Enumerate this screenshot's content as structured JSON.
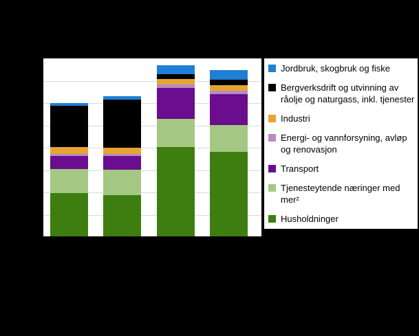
{
  "chart_data": {
    "type": "bar",
    "stacked": true,
    "title": "",
    "xlabel": "",
    "ylabel": "",
    "categories": [
      "",
      "",
      "",
      ""
    ],
    "x_tick_labels_visible": false,
    "y_tick_labels_visible": false,
    "ylim": [
      0,
      100
    ],
    "grid": true,
    "gridline_divisions": 8,
    "legend_position": "right",
    "series": [
      {
        "name": "Husholdninger",
        "color": "#3e7e10",
        "values": [
          24.2,
          23.1,
          50.0,
          47.3
        ]
      },
      {
        "name": "Tjenesteytende næringer med mer²",
        "color": "#a4c883",
        "values": [
          13.5,
          14.2,
          16.2,
          15.4
        ]
      },
      {
        "name": "Transport",
        "color": "#6a0d8e",
        "values": [
          7.3,
          7.7,
          17.3,
          17.3
        ]
      },
      {
        "name": "Energi- og vannforsyning, avløp og renovasjon",
        "color": "#b78bc4",
        "values": [
          1.2,
          1.2,
          1.9,
          1.9
        ]
      },
      {
        "name": "Industri",
        "color": "#e6a532",
        "values": [
          3.8,
          3.5,
          3.1,
          3.1
        ]
      },
      {
        "name": "Bergverksdrift og utvinning av råolje og naturgass, inkl. tjenester",
        "color": "#000000",
        "values": [
          23.5,
          27.3,
          2.7,
          3.1
        ]
      },
      {
        "name": "Jordbruk, skogbruk og fiske",
        "color": "#1e7fd4",
        "values": [
          1.5,
          1.9,
          5.0,
          5.4
        ]
      }
    ]
  },
  "colors": {
    "page_background": "#000000",
    "plot_background": "#ffffff",
    "legend_background": "#ffffff",
    "gridline": "#d9d9d9",
    "axis": "#000000",
    "text": "#000000"
  }
}
